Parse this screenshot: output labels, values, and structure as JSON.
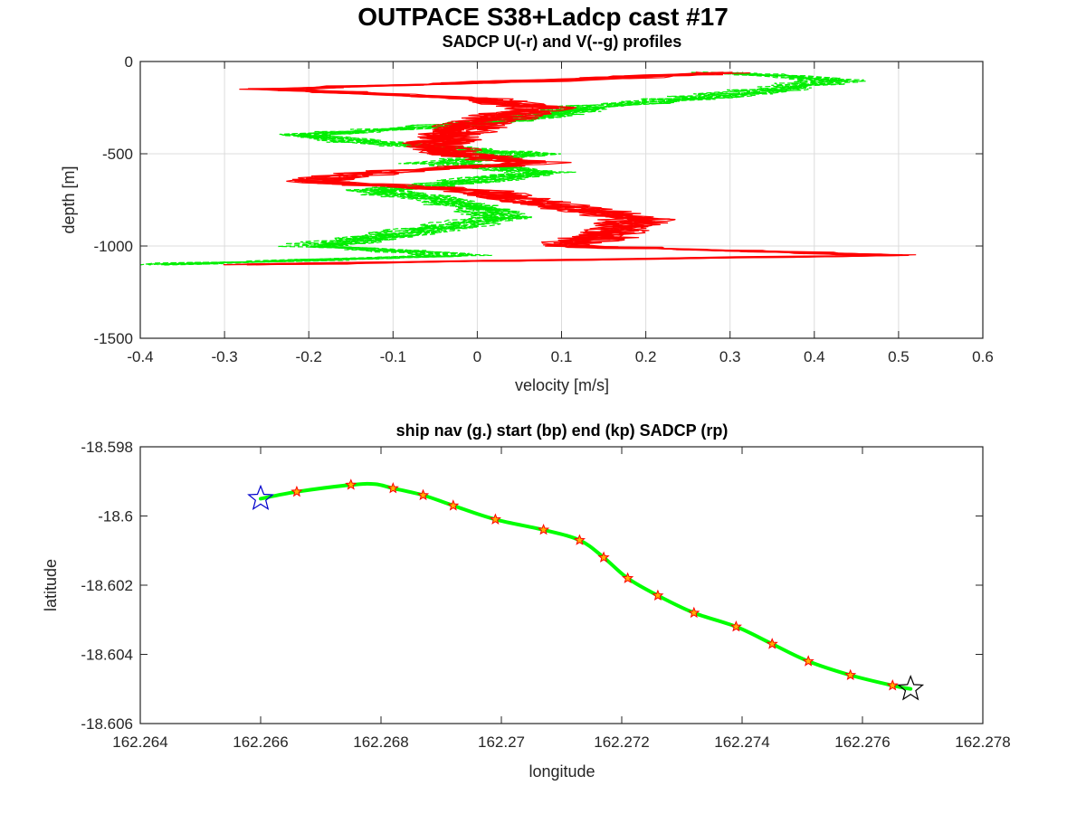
{
  "figure": {
    "title": "OUTPACE S38+Ladcp cast #17"
  },
  "colors": {
    "u": "#ff0000",
    "v": "#00ee00",
    "track": "#00ff00",
    "sadcp_marker_fill": "#ffb000",
    "sadcp_marker_edge": "#ff0000",
    "start_marker": "#0000cc",
    "end_marker": "#000000",
    "grid": "#dcdcdc",
    "axes": "#262626"
  },
  "chart_data": [
    {
      "type": "line",
      "title": "SADCP U(-r) and V(--g) profiles",
      "xlabel": "velocity [m/s]",
      "ylabel": "depth [m]",
      "xlim": [
        -0.4,
        0.6
      ],
      "ylim": [
        -1500,
        0
      ],
      "xticks": [
        "-0.4",
        "-0.3",
        "-0.2",
        "-0.1",
        "0",
        "0.1",
        "0.2",
        "0.3",
        "0.4",
        "0.5",
        "0.6"
      ],
      "yticks": [
        "0",
        "-500",
        "-1000",
        "-1500"
      ],
      "grid": true,
      "series": [
        {
          "key": "u",
          "style": "solid",
          "color": "red",
          "depth": [
            -60,
            -100,
            -150,
            -200,
            -250,
            -300,
            -350,
            -400,
            -450,
            -500,
            -550,
            -600,
            -650,
            -700,
            -750,
            -800,
            -850,
            -900,
            -950,
            -1000,
            -1050,
            -1100
          ],
          "values": [
            0.3,
            0.1,
            -0.24,
            0.0,
            0.08,
            0.03,
            -0.01,
            -0.03,
            -0.05,
            -0.03,
            0.07,
            -0.12,
            -0.2,
            0.0,
            0.05,
            0.12,
            0.19,
            0.17,
            0.15,
            0.1,
            0.5,
            -0.27
          ]
        },
        {
          "key": "v",
          "style": "dashed",
          "color": "green",
          "depth": [
            -60,
            -100,
            -150,
            -200,
            -250,
            -300,
            -350,
            -400,
            -450,
            -500,
            -550,
            -600,
            -650,
            -700,
            -750,
            -800,
            -850,
            -900,
            -950,
            -1000,
            -1050,
            -1100
          ],
          "values": [
            0.28,
            0.42,
            0.35,
            0.25,
            0.12,
            0.06,
            -0.05,
            -0.22,
            -0.1,
            0.05,
            -0.05,
            0.07,
            -0.02,
            -0.13,
            -0.05,
            0.0,
            0.02,
            -0.05,
            -0.12,
            -0.2,
            -0.02,
            -0.38
          ]
        }
      ]
    },
    {
      "type": "line",
      "title": "ship nav (g.) start (bp) end (kp) SADCP (rp)",
      "xlabel": "longitude",
      "ylabel": "latitude",
      "xlim": [
        162.264,
        162.278
      ],
      "ylim": [
        -18.606,
        -18.598
      ],
      "xticks": [
        "162.264",
        "162.266",
        "162.268",
        "162.27",
        "162.272",
        "162.274",
        "162.276",
        "162.278"
      ],
      "yticks": [
        "-18.598",
        "-18.6",
        "-18.602",
        "-18.604",
        "-18.606"
      ],
      "grid": false,
      "track": {
        "lon": [
          162.266,
          162.2666,
          162.2675,
          162.2679,
          162.2682,
          162.2687,
          162.2692,
          162.2699,
          162.2707,
          162.2713,
          162.2717,
          162.2721,
          162.2726,
          162.2732,
          162.2739,
          162.2745,
          162.2751,
          162.2758,
          162.2765,
          162.2768
        ],
        "lat": [
          -18.5995,
          -18.5993,
          -18.5991,
          -18.59908,
          -18.5992,
          -18.5994,
          -18.5997,
          -18.6001,
          -18.6004,
          -18.6007,
          -18.6012,
          -18.6018,
          -18.6023,
          -18.6028,
          -18.6032,
          -18.6037,
          -18.6042,
          -18.6046,
          -18.6049,
          -18.605
        ]
      },
      "sadcp_points": {
        "lon": [
          162.2666,
          162.2675,
          162.2682,
          162.2687,
          162.2692,
          162.2699,
          162.2707,
          162.2713,
          162.2717,
          162.2721,
          162.2726,
          162.2732,
          162.2739,
          162.2745,
          162.2751,
          162.2758,
          162.2765
        ],
        "lat": [
          -18.5993,
          -18.5991,
          -18.5992,
          -18.5994,
          -18.5997,
          -18.6001,
          -18.6004,
          -18.6007,
          -18.6012,
          -18.6018,
          -18.6023,
          -18.6028,
          -18.6032,
          -18.6037,
          -18.6042,
          -18.6046,
          -18.6049
        ]
      },
      "start": {
        "lon": 162.266,
        "lat": -18.5995
      },
      "end": {
        "lon": 162.2768,
        "lat": -18.605
      }
    }
  ]
}
